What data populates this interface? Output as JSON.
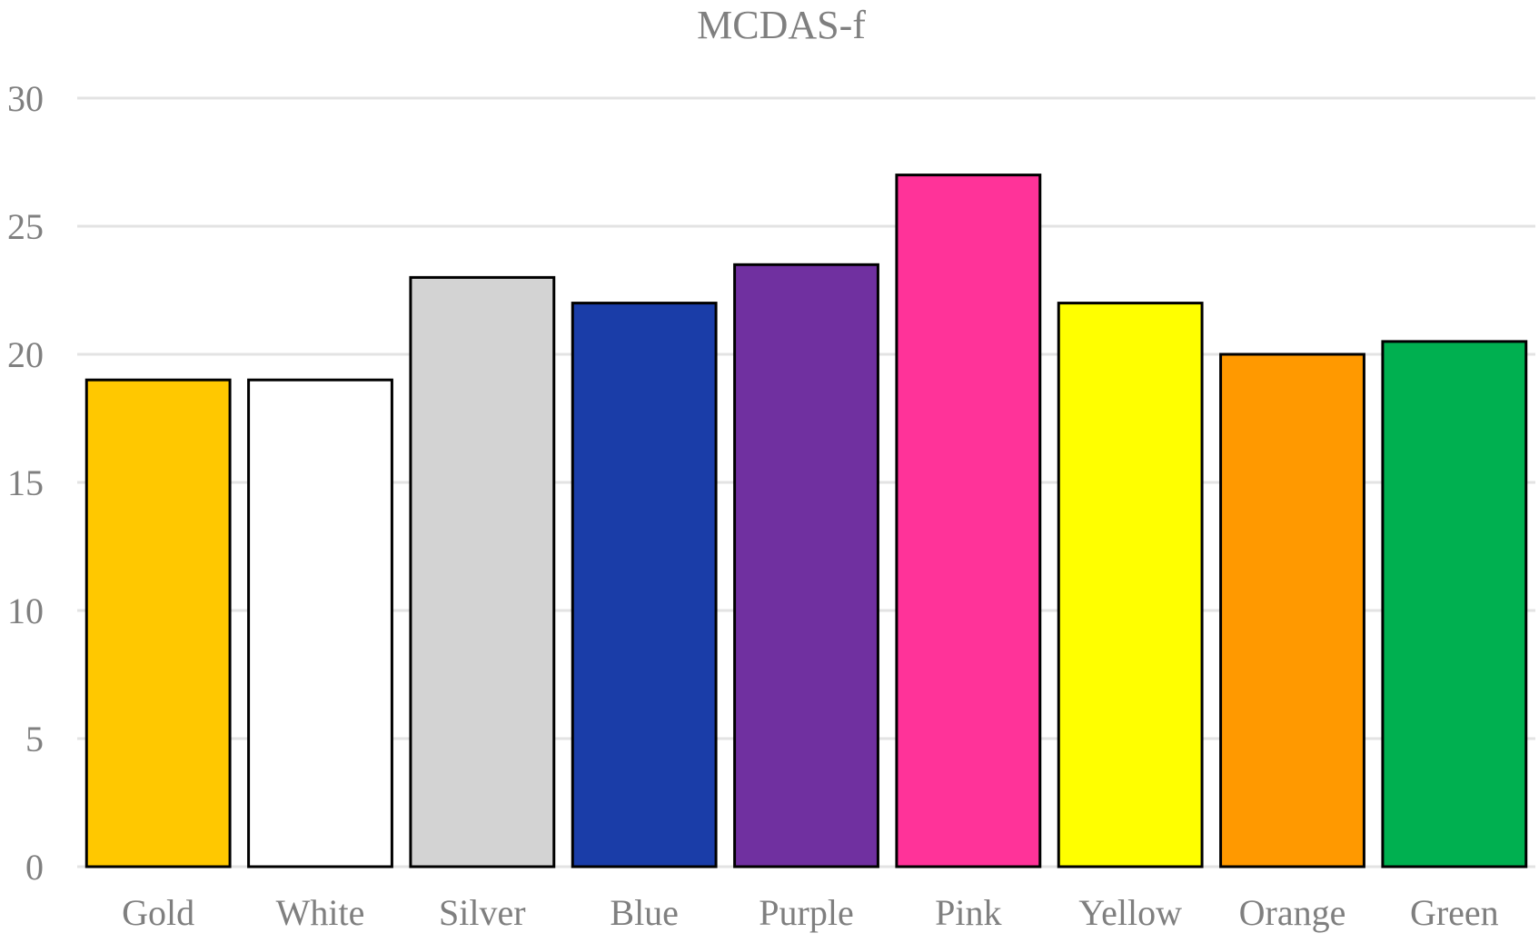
{
  "chart_data": {
    "type": "bar",
    "title": "MCDAS-f",
    "xlabel": "",
    "ylabel": "",
    "categories": [
      "Gold",
      "White",
      "Silver",
      "Blue",
      "Purple",
      "Pink",
      "Yellow",
      "Orange",
      "Green"
    ],
    "values": [
      19,
      19,
      23,
      22,
      23.5,
      27,
      22,
      20,
      20.5
    ],
    "colors": [
      "#FFC800",
      "#FFFFFF",
      "#D3D3D3",
      "#1A3DA8",
      "#7030A0",
      "#FF3399",
      "#FFFF00",
      "#FF9900",
      "#00B050"
    ],
    "ylim": [
      0,
      30
    ],
    "yticks": [
      "0",
      "5",
      "10",
      "15",
      "20",
      "25",
      "30"
    ],
    "grid": true,
    "legend": "none"
  },
  "style": {
    "grid_color": "#E3E3E3",
    "text_color": "#7F7F7F",
    "bar_border_color": "#000000"
  }
}
